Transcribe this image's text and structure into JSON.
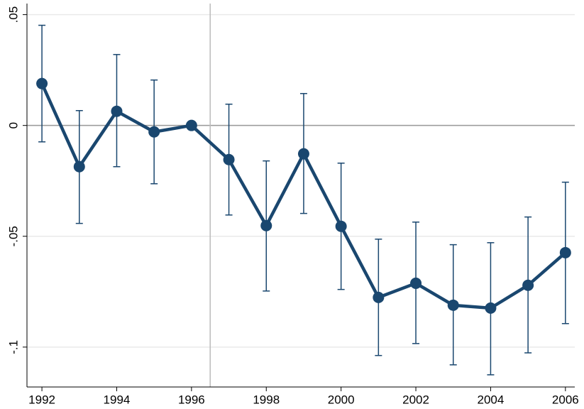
{
  "chart_data": {
    "type": "line",
    "x": [
      1992,
      1993,
      1994,
      1995,
      1996,
      1997,
      1998,
      1999,
      2000,
      2001,
      2002,
      2003,
      2004,
      2005,
      2006
    ],
    "values": [
      0.0189,
      -0.0186,
      0.0064,
      -0.0029,
      0,
      -0.0154,
      -0.0452,
      -0.0128,
      -0.0455,
      -0.0776,
      -0.0712,
      -0.0811,
      -0.0824,
      -0.0721,
      -0.0574
    ],
    "lower": [
      -0.0074,
      -0.0442,
      -0.0186,
      -0.0263,
      null,
      -0.0404,
      -0.0747,
      -0.0397,
      -0.074,
      -0.1038,
      -0.0984,
      -0.108,
      -0.1125,
      -0.1026,
      -0.0894
    ],
    "upper": [
      0.0452,
      0.0067,
      0.032,
      0.0205,
      null,
      0.0096,
      -0.016,
      0.0144,
      -0.017,
      -0.0513,
      -0.0436,
      -0.0538,
      -0.0529,
      -0.0413,
      -0.0256
    ],
    "color": "#1a476f",
    "xlim": [
      1991.6,
      2006.25
    ],
    "xticks": [
      1992,
      1994,
      1996,
      1998,
      2000,
      2002,
      2004,
      2006
    ],
    "ylim": [
      -0.118,
      0.055
    ],
    "yticks": [
      {
        "value": 0.05,
        "label": ".05"
      },
      0,
      {
        "value": -0.05,
        "label": "-.05"
      },
      {
        "value": -0.1,
        "label": "-.1"
      }
    ],
    "grid": true,
    "hline": 0,
    "vline": 1996.5
  }
}
